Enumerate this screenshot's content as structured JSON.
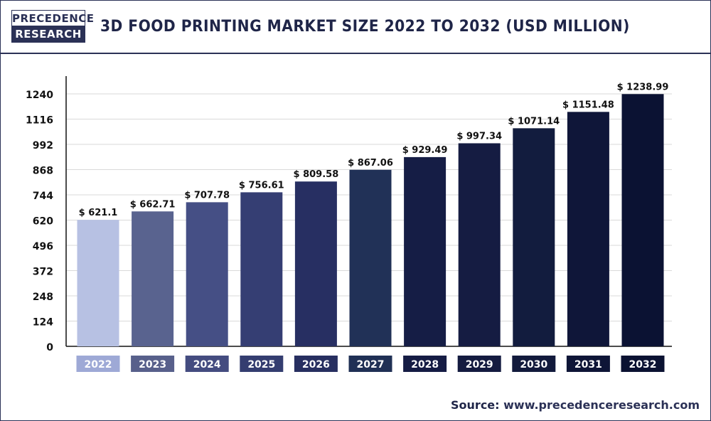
{
  "logo": {
    "line1": "PRECEDENCE",
    "line2": "RESEARCH"
  },
  "source": {
    "label": "Source:",
    "url": "www.precedenceresearch.com"
  },
  "chart_data": {
    "type": "bar",
    "title": "3D FOOD PRINTING MARKET SIZE 2022 TO 2032 (USD MILLION)",
    "xlabel": "",
    "ylabel": "",
    "categories": [
      "2022",
      "2023",
      "2024",
      "2025",
      "2026",
      "2027",
      "2028",
      "2029",
      "2030",
      "2031",
      "2032"
    ],
    "values": [
      621.1,
      662.71,
      707.78,
      756.61,
      809.58,
      867.06,
      929.49,
      997.34,
      1071.14,
      1151.48,
      1238.99
    ],
    "data_labels": [
      "$ 621.1",
      "$ 662.71",
      "$ 707.78",
      "$ 756.61",
      "$ 809.58",
      "$ 867.06",
      "$ 929.49",
      "$ 997.34",
      "$ 1071.14",
      "$ 1151.48",
      "$ 1238.99"
    ],
    "yticks": [
      0,
      124,
      248,
      372,
      496,
      620,
      744,
      868,
      992,
      1116,
      1240
    ],
    "ylim": [
      0,
      1240
    ],
    "grid": true,
    "bar_colors": [
      "#b7c1e3",
      "#59638f",
      "#454f85",
      "#353e73",
      "#272f62",
      "#213157",
      "#151d45",
      "#151c42",
      "#121c3e",
      "#0f1639",
      "#0b1233"
    ],
    "label_colors": [
      "#9ea9d6",
      "#58608b",
      "#444c80",
      "#343d70",
      "#272f60",
      "#203055",
      "#151c44",
      "#141b40",
      "#121a3c",
      "#0e1537",
      "#0b1232"
    ]
  }
}
